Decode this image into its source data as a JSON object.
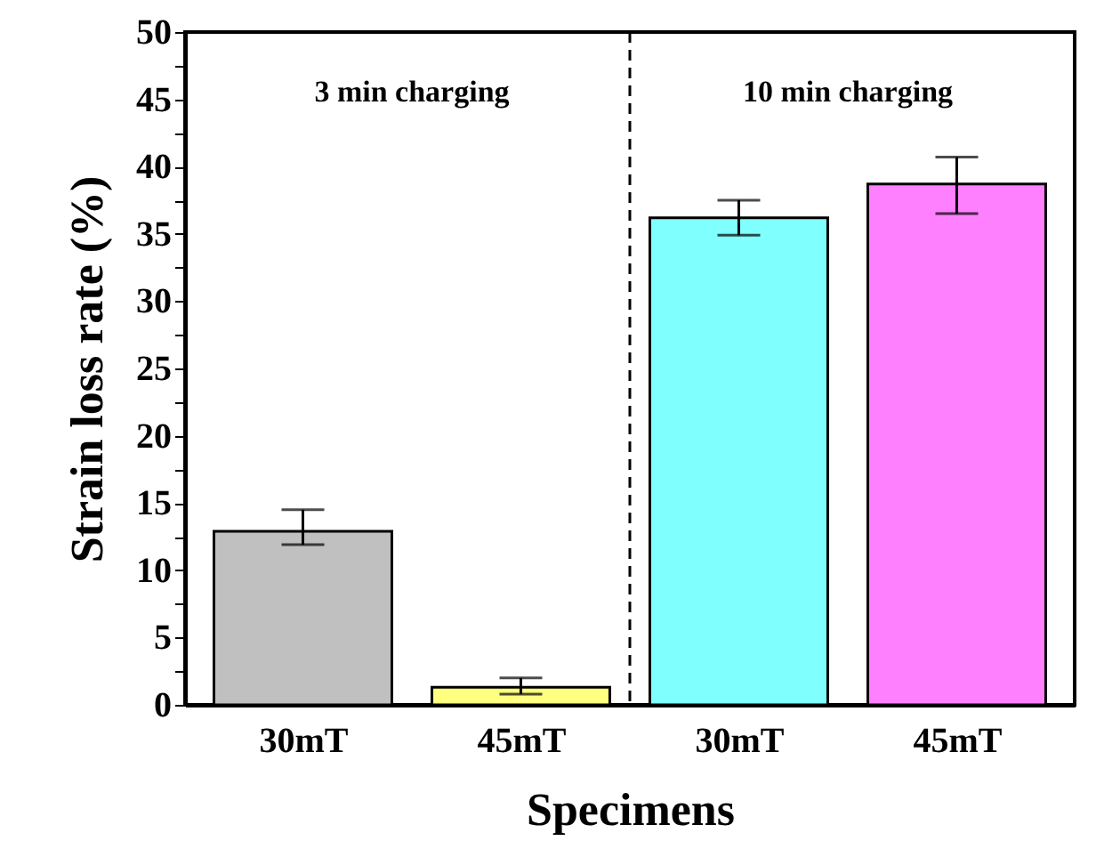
{
  "chart_data": {
    "type": "bar",
    "xlabel": "Specimens",
    "ylabel": "Strain loss rate (%)",
    "categories": [
      "30mT",
      "45mT",
      "30mT",
      "45mT"
    ],
    "values": [
      12.9,
      1.3,
      36.2,
      38.7
    ],
    "colors": [
      "#c0c0c0",
      "#ffff80",
      "#80ffff",
      "#ff80ff"
    ],
    "errors": [
      [
        11.9,
        14.5
      ],
      [
        0.8,
        2.0
      ],
      [
        34.9,
        37.5
      ],
      [
        36.5,
        40.7
      ]
    ],
    "ylim": [
      0,
      50
    ],
    "yticks": [
      0,
      {
        "value": 2.5,
        "label": null
      },
      5,
      {
        "value": 7.5,
        "label": null
      },
      10,
      {
        "value": 12.5,
        "label": null
      },
      15,
      {
        "value": 17.5,
        "label": null
      },
      20,
      {
        "value": 22.5,
        "label": null
      },
      25,
      {
        "value": 27.5,
        "label": null
      },
      30,
      {
        "value": 32.5,
        "label": null
      },
      35,
      {
        "value": 37.5,
        "label": null
      },
      40,
      {
        "value": 42.5,
        "label": null
      },
      45,
      {
        "value": 47.5,
        "label": null
      },
      50
    ],
    "annotations": [
      "3 min charging",
      "10 min charging"
    ]
  }
}
